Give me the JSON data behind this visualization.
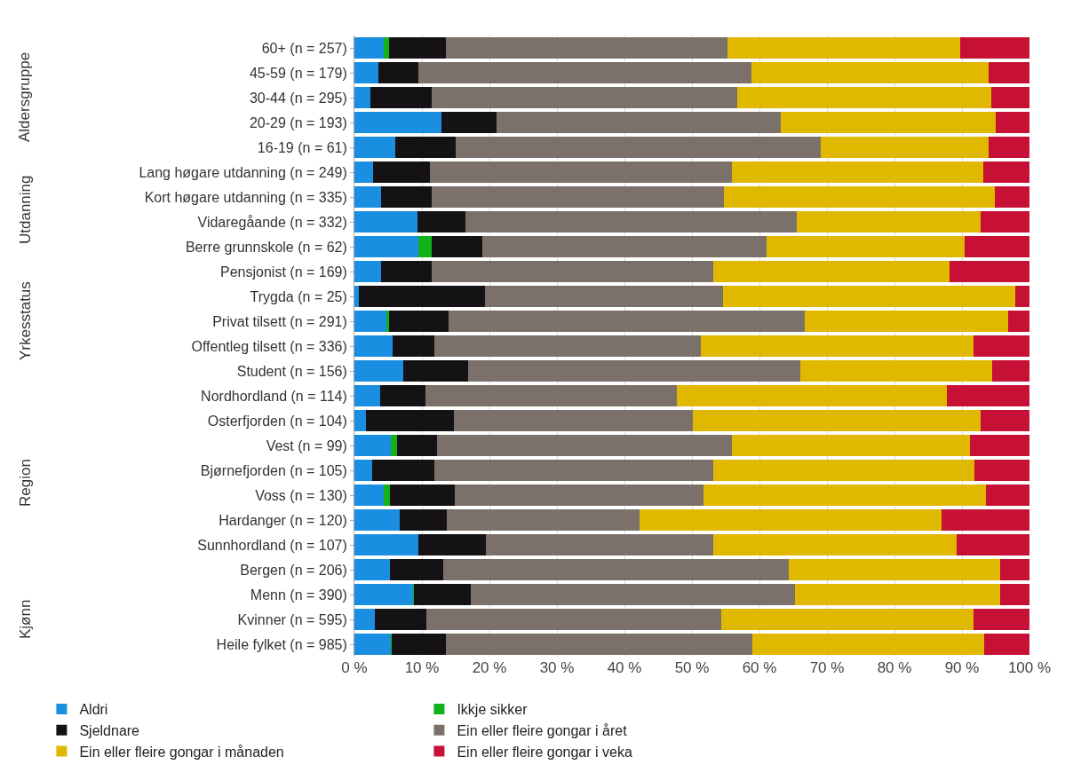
{
  "chart_data": {
    "type": "bar",
    "orientation": "horizontal",
    "stacked": true,
    "categories": [
      "60+ (n = 257)",
      "45-59 (n = 179)",
      "30-44 (n = 295)",
      "20-29 (n = 193)",
      "16-19 (n = 61)",
      "Lang høgare utdanning (n = 249)",
      "Kort høgare utdanning (n = 335)",
      "Vidaregåande (n = 332)",
      "Berre grunnskole (n = 62)",
      "Pensjonist (n = 169)",
      "Trygda (n = 25)",
      "Privat tilsett (n = 291)",
      "Offentleg tilsett (n = 336)",
      "Student (n = 156)",
      "Nordhordland (n = 114)",
      "Osterfjorden (n = 104)",
      "Vest (n = 99)",
      "Bjørnefjorden (n = 105)",
      "Voss (n = 130)",
      "Hardanger (n = 120)",
      "Sunnhordland (n = 107)",
      "Bergen (n = 206)",
      "Menn (n = 390)",
      "Kvinner (n = 595)",
      "Heile fylket (n = 985)"
    ],
    "series": [
      {
        "name": "Aldri",
        "color": "#1a8ee0",
        "values": [
          4.4,
          3.6,
          2.4,
          12.9,
          6.1,
          2.8,
          4.0,
          9.3,
          9.5,
          4.0,
          0.7,
          4.8,
          5.7,
          7.2,
          3.8,
          1.7,
          5.4,
          2.6,
          4.4,
          6.7,
          9.5,
          5.2,
          8.7,
          3.0,
          5.4
        ]
      },
      {
        "name": "Ikkje sikker",
        "color": "#12b31a",
        "values": [
          0.7,
          0,
          0,
          0,
          0,
          0,
          0,
          0,
          1.9,
          0,
          0,
          0.3,
          0,
          0,
          0,
          0,
          0.9,
          0,
          0.8,
          0,
          0,
          0,
          0.1,
          0,
          0.1
        ]
      },
      {
        "name": "Sjeldnare",
        "color": "#141214",
        "values": [
          8.5,
          5.9,
          9.1,
          8.2,
          8.9,
          8.4,
          7.5,
          7.1,
          7.6,
          7.5,
          18.6,
          8.8,
          6.1,
          9.6,
          6.7,
          13.1,
          5.9,
          9.2,
          9.7,
          7.0,
          10.0,
          8.0,
          8.5,
          7.7,
          8.1
        ]
      },
      {
        "name": "Ein eller fleire gongar i året",
        "color": "#7b716a",
        "values": [
          41.7,
          49.3,
          45.2,
          42.0,
          54.1,
          44.7,
          43.2,
          49.1,
          42.0,
          41.6,
          35.3,
          52.8,
          39.5,
          49.2,
          37.2,
          35.3,
          43.7,
          41.4,
          36.8,
          28.5,
          33.6,
          51.1,
          47.9,
          43.7,
          45.3
        ]
      },
      {
        "name": "Ein eller fleire gongar i månaden",
        "color": "#e1b800",
        "values": [
          34.5,
          35.2,
          37.6,
          31.9,
          24.9,
          37.2,
          40.2,
          27.3,
          29.4,
          35.1,
          43.3,
          30.1,
          40.4,
          28.5,
          40.1,
          42.6,
          35.3,
          38.7,
          41.8,
          44.8,
          36.1,
          31.3,
          30.4,
          37.3,
          34.4
        ]
      },
      {
        "name": "Ein eller fleire gongar i veka",
        "color": "#c61035",
        "values": [
          10.2,
          6.0,
          5.7,
          5.0,
          6.0,
          6.9,
          5.1,
          7.2,
          9.6,
          11.8,
          2.1,
          3.2,
          8.3,
          5.5,
          12.2,
          7.3,
          8.8,
          8.1,
          6.5,
          13.0,
          10.8,
          4.4,
          4.4,
          8.3,
          6.7
        ]
      }
    ],
    "xlim": [
      0,
      100
    ],
    "xticks": [
      {
        "value": 0,
        "label": "0 %"
      },
      {
        "value": 10,
        "label": "10 %"
      },
      {
        "value": 20,
        "label": "20 %"
      },
      {
        "value": 30,
        "label": "30 %"
      },
      {
        "value": 40,
        "label": "40 %"
      },
      {
        "value": 50,
        "label": "50 %"
      },
      {
        "value": 60,
        "label": "60 %"
      },
      {
        "value": 70,
        "label": "70 %"
      },
      {
        "value": 80,
        "label": "80 %"
      },
      {
        "value": 90,
        "label": "90 %"
      },
      {
        "value": 100,
        "label": "100 %"
      }
    ],
    "grid": "x",
    "legend": "bottom",
    "annotations": [
      "Aldersgruppe",
      "Utdanning",
      "Yrkesstatus",
      "Region",
      "Kjønn"
    ]
  }
}
